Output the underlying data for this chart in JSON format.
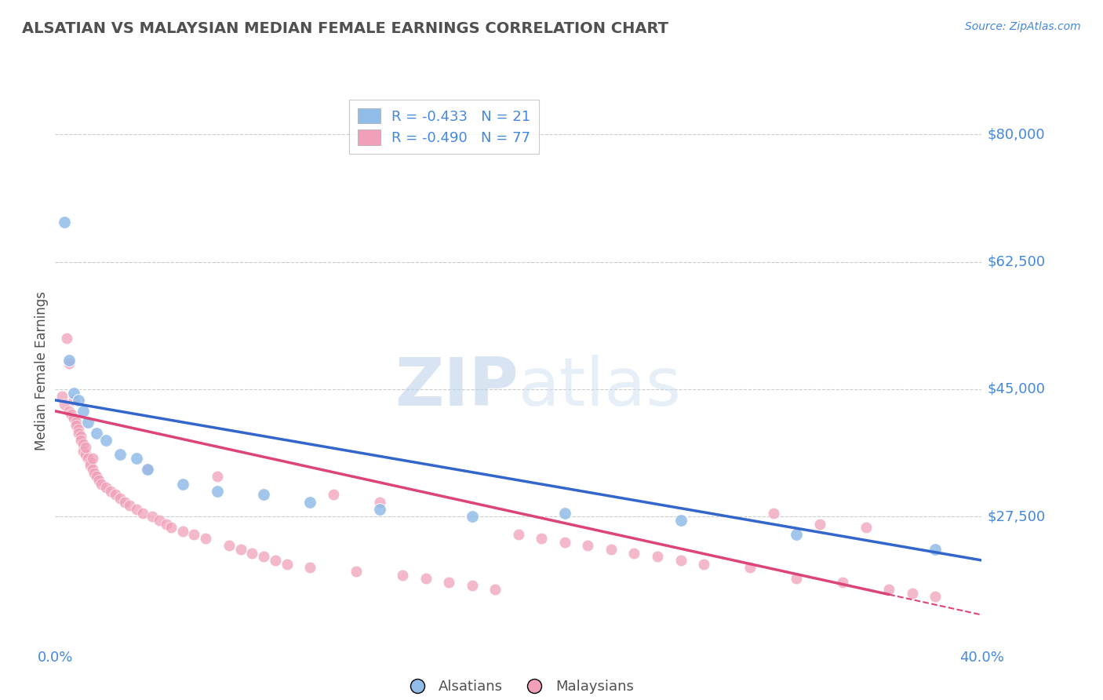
{
  "title": "ALSATIAN VS MALAYSIAN MEDIAN FEMALE EARNINGS CORRELATION CHART",
  "source": "Source: ZipAtlas.com",
  "ylabel": "Median Female Earnings",
  "xlim": [
    0.0,
    0.4
  ],
  "ylim": [
    10000,
    85000
  ],
  "yticks": [
    27500,
    45000,
    62500,
    80000
  ],
  "ytick_labels": [
    "$27,500",
    "$45,000",
    "$62,500",
    "$80,000"
  ],
  "xticks": [
    0.0,
    0.1,
    0.2,
    0.3,
    0.4
  ],
  "xtick_labels": [
    "0.0%",
    "",
    "",
    "",
    "40.0%"
  ],
  "watermark_zip": "ZIP",
  "watermark_atlas": "atlas",
  "legend_R_alsatian": "-0.433",
  "legend_N_alsatian": "21",
  "legend_R_malaysian": "-0.490",
  "legend_N_malaysian": "77",
  "alsatian_color": "#92bce8",
  "malaysian_color": "#f0a0b8",
  "trend_alsatian_color": "#3366cc",
  "trend_malaysian_color": "#dd4477",
  "background_color": "#ffffff",
  "grid_color": "#cccccc",
  "title_color": "#505050",
  "axis_label_color": "#505050",
  "tick_label_color": "#4488dd",
  "alsatian_x": [
    0.004,
    0.006,
    0.008,
    0.01,
    0.012,
    0.014,
    0.018,
    0.022,
    0.028,
    0.035,
    0.04,
    0.055,
    0.07,
    0.09,
    0.11,
    0.14,
    0.18,
    0.22,
    0.27,
    0.32,
    0.38
  ],
  "alsatian_y": [
    68000,
    49000,
    44500,
    43500,
    42000,
    40500,
    39000,
    38000,
    36000,
    35500,
    34000,
    32000,
    31000,
    30500,
    29500,
    28500,
    27500,
    28000,
    27000,
    25000,
    23000
  ],
  "malaysian_x": [
    0.003,
    0.004,
    0.005,
    0.006,
    0.006,
    0.007,
    0.008,
    0.008,
    0.009,
    0.009,
    0.01,
    0.01,
    0.011,
    0.011,
    0.012,
    0.012,
    0.013,
    0.013,
    0.014,
    0.015,
    0.015,
    0.016,
    0.016,
    0.017,
    0.018,
    0.019,
    0.02,
    0.022,
    0.024,
    0.026,
    0.028,
    0.03,
    0.032,
    0.035,
    0.038,
    0.04,
    0.042,
    0.045,
    0.048,
    0.05,
    0.055,
    0.06,
    0.065,
    0.07,
    0.075,
    0.08,
    0.085,
    0.09,
    0.095,
    0.1,
    0.11,
    0.12,
    0.13,
    0.14,
    0.15,
    0.16,
    0.17,
    0.18,
    0.19,
    0.2,
    0.21,
    0.22,
    0.23,
    0.24,
    0.25,
    0.26,
    0.27,
    0.28,
    0.3,
    0.31,
    0.32,
    0.33,
    0.34,
    0.35,
    0.36,
    0.37,
    0.38
  ],
  "malaysian_y": [
    44000,
    43000,
    52000,
    42000,
    48500,
    41500,
    41000,
    43500,
    40500,
    40000,
    39500,
    39000,
    38500,
    38000,
    37500,
    36500,
    36000,
    37000,
    35500,
    35000,
    34500,
    34000,
    35500,
    33500,
    33000,
    32500,
    32000,
    31500,
    31000,
    30500,
    30000,
    29500,
    29000,
    28500,
    28000,
    34000,
    27500,
    27000,
    26500,
    26000,
    25500,
    25000,
    24500,
    33000,
    23500,
    23000,
    22500,
    22000,
    21500,
    21000,
    20500,
    30500,
    20000,
    29500,
    19500,
    19000,
    18500,
    18000,
    17500,
    25000,
    24500,
    24000,
    23500,
    23000,
    22500,
    22000,
    21500,
    21000,
    20500,
    28000,
    19000,
    26500,
    18500,
    26000,
    17500,
    17000,
    16500
  ]
}
